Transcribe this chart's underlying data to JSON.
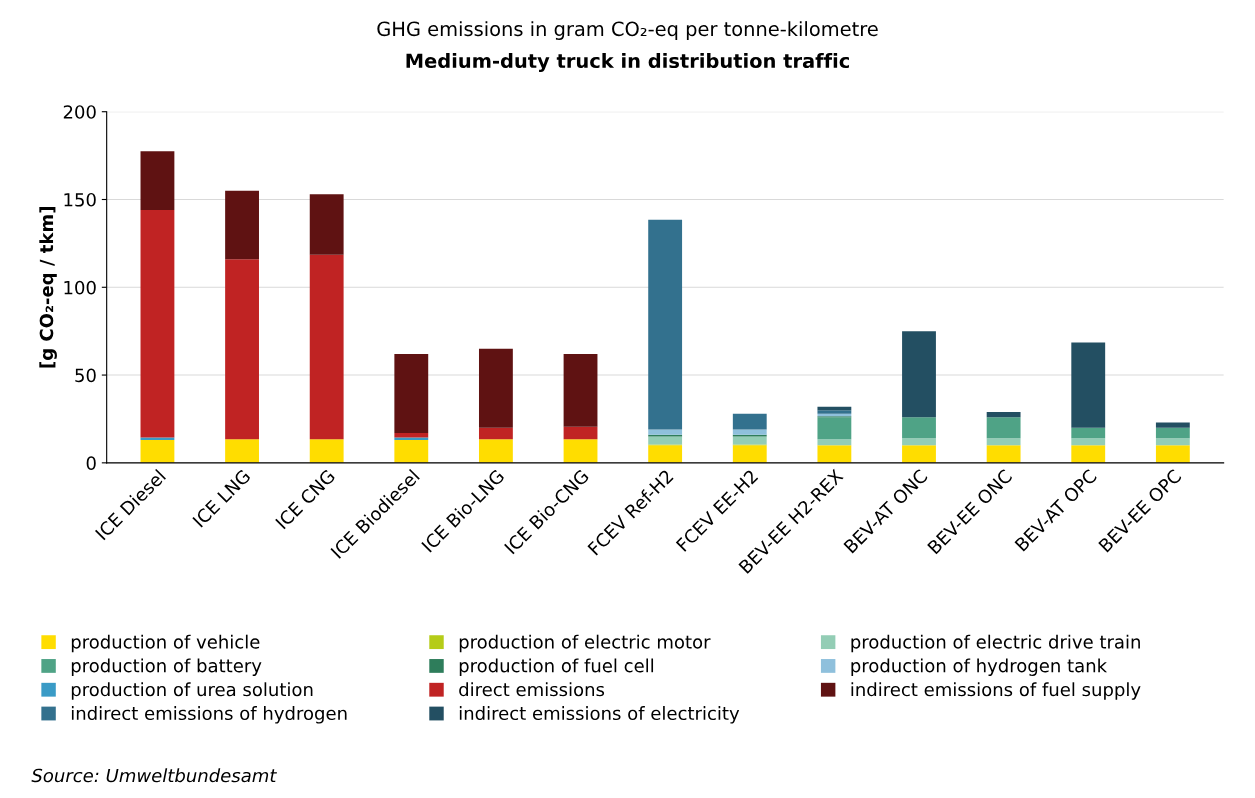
{
  "chart_data": {
    "type": "bar",
    "stacked": true,
    "title": "GHG emissions in gram CO₂-eq per tonne-kilometre",
    "subtitle": "Medium-duty truck in distribution traffic",
    "ylabel": "[g CO₂-eq / tkm]",
    "categories": [
      "ICE Diesel",
      "ICE LNG",
      "ICE CNG",
      "ICE Biodiesel",
      "ICE Bio-LNG",
      "ICE Bio-CNG",
      "FCEV Ref-H2",
      "FCEV EE-H2",
      "BEV-EE H2-REX",
      "BEV-AT ONC",
      "BEV-EE ONC",
      "BEV-AT OPC",
      "BEV-EE OPC"
    ],
    "series": [
      {
        "name": "production of vehicle",
        "color": "#ffdd00",
        "values": [
          13,
          13.5,
          13.5,
          13,
          13.5,
          13.5,
          10,
          10,
          10,
          10,
          10,
          10,
          10
        ]
      },
      {
        "name": "production of electric motor",
        "color": "#b5cc18",
        "values": [
          0,
          0,
          0,
          0,
          0,
          0,
          0.5,
          0.5,
          0,
          0,
          0,
          0,
          0
        ]
      },
      {
        "name": "production of electric drive train",
        "color": "#93cdb5",
        "values": [
          0,
          0,
          0,
          0,
          0,
          0,
          4.5,
          4.5,
          3.5,
          4,
          4,
          4,
          4
        ]
      },
      {
        "name": "production of battery",
        "color": "#4fa386",
        "values": [
          0,
          0,
          0,
          0,
          0,
          0,
          null,
          null,
          12.5,
          12,
          12,
          6,
          6
        ]
      },
      {
        "name": "production of fuel cell",
        "color": "#2e7d5b",
        "values": [
          0,
          0,
          0,
          0,
          0,
          0,
          1,
          1,
          0.5,
          0,
          0,
          0,
          0
        ]
      },
      {
        "name": "production of hydrogen tank",
        "color": "#8fc0dc",
        "values": [
          0,
          0,
          0,
          0,
          0,
          0,
          3,
          3,
          1.5,
          0,
          0,
          0,
          0
        ]
      },
      {
        "name": "production of urea solution",
        "color": "#3a9bc6",
        "values": [
          1.5,
          0,
          0,
          1.5,
          0,
          0,
          0,
          0,
          0,
          0,
          0,
          0,
          0
        ]
      },
      {
        "name": "direct emissions",
        "color": "#c02323",
        "values": [
          129.5,
          102.5,
          105,
          2.5,
          6.5,
          7,
          0,
          0,
          0,
          0,
          0,
          0,
          0
        ]
      },
      {
        "name": "indirect emissions of fuel supply",
        "color": "#5f1212",
        "values": [
          33.5,
          39,
          34.5,
          45,
          45,
          41.5,
          0,
          0,
          0,
          0,
          0,
          0,
          0
        ]
      },
      {
        "name": "indirect emissions of hydrogen",
        "color": "#33718e",
        "values": [
          0,
          0,
          0,
          0,
          0,
          0,
          119.5,
          9,
          2,
          0,
          0,
          0,
          0
        ]
      },
      {
        "name": "indirect emissions of electricity",
        "color": "#234f62",
        "values": [
          0,
          0,
          0,
          0,
          0,
          0,
          0,
          0,
          2,
          49,
          3,
          48.5,
          3
        ]
      }
    ],
    "ylim": [
      0,
      200
    ],
    "yticks": [
      0,
      50,
      100,
      150,
      200
    ],
    "grid": "y",
    "legend": "bottom",
    "annotations": [
      "Source: Umweltbundesamt"
    ]
  }
}
